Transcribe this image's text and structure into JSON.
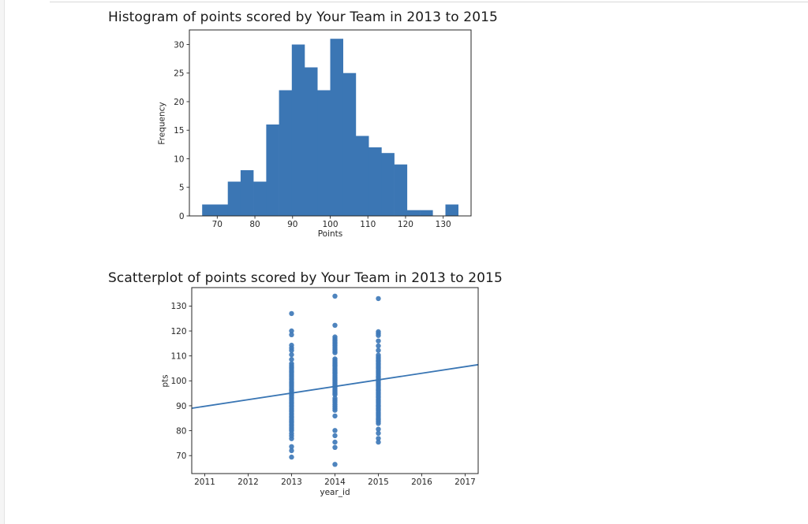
{
  "page": {
    "background": "#ffffff",
    "gutter_color": "#f5f5f5",
    "separator_color": "#d8d8d8",
    "accent_blue": "#3b76b4"
  },
  "chart_data": [
    {
      "type": "bar",
      "subtype": "histogram",
      "title": "Histogram of points scored by Your Team in 2013 to 2015",
      "xlabel": "Points",
      "ylabel": "Frequency",
      "bin_start": 66,
      "bin_width": 3.4,
      "bin_edges": [
        66.0,
        69.4,
        72.8,
        76.2,
        79.6,
        83.0,
        86.4,
        89.8,
        93.2,
        96.6,
        100.0,
        103.4,
        106.8,
        110.2,
        113.6,
        117.0,
        120.4,
        123.8,
        127.2,
        130.6,
        134.0
      ],
      "frequencies": [
        2,
        2,
        6,
        8,
        6,
        16,
        22,
        30,
        26,
        22,
        31,
        25,
        14,
        12,
        11,
        9,
        1,
        1,
        0,
        2
      ],
      "xlim": [
        62.6,
        137.4
      ],
      "ylim": [
        0,
        32.55
      ],
      "xticks": [
        70,
        80,
        90,
        100,
        110,
        120,
        130
      ],
      "yticks": [
        0,
        5,
        10,
        15,
        20,
        25,
        30
      ],
      "grid": false,
      "bar_color": "#3b76b4",
      "frame_color": "#262626"
    },
    {
      "type": "scatter",
      "title": "Scatterplot of points scored by Your Team in 2013 to 2015",
      "xlabel": "year_id",
      "ylabel": "pts",
      "xlim": [
        2010.7,
        2017.3
      ],
      "ylim": [
        62.8,
        137.4
      ],
      "xticks": [
        2011,
        2012,
        2013,
        2014,
        2015,
        2016,
        2017
      ],
      "yticks": [
        70,
        80,
        90,
        100,
        110,
        120,
        130
      ],
      "grid": false,
      "point_color": "#3f7ab8",
      "line_color": "#3a76b4",
      "regression_line": {
        "x1": 2010.7,
        "y1": 89.0,
        "x2": 2017.3,
        "y2": 106.5
      },
      "series": [
        {
          "name": "2013",
          "x": 2013,
          "pts": [
            127,
            120,
            118.5,
            114.3,
            113.2,
            112.2,
            110.5,
            108.6,
            106.9,
            106.3,
            105.6,
            105.0,
            104.3,
            103.7,
            103.1,
            102.4,
            101.8,
            101.1,
            100.5,
            99.8,
            99.2,
            98.6,
            97.9,
            97.3,
            96.6,
            96.0,
            95.4,
            94.7,
            94.1,
            93.4,
            92.8,
            92.1,
            91.5,
            90.9,
            90.2,
            89.6,
            88.9,
            88.3,
            87.7,
            87.0,
            86.4,
            85.7,
            85.1,
            84.4,
            83.8,
            83.2,
            82.5,
            81.9,
            81.2,
            80.6,
            80.0,
            78.9,
            77.9,
            76.8,
            73.6,
            72.0,
            69.4
          ]
        },
        {
          "name": "2014",
          "x": 2014,
          "pts": [
            134,
            122.3,
            117.6,
            116.9,
            116.2,
            115.5,
            114.8,
            114.1,
            113.4,
            112.7,
            112.0,
            111.3,
            108.8,
            108.2,
            107.6,
            107.0,
            106.4,
            105.8,
            105.2,
            104.6,
            104.0,
            103.4,
            102.8,
            102.2,
            101.6,
            101.0,
            100.4,
            99.8,
            99.2,
            98.6,
            98.0,
            97.4,
            96.8,
            96.2,
            95.6,
            95.0,
            94.4,
            93.0,
            92.2,
            91.4,
            90.6,
            89.8,
            89.0,
            88.2,
            85.9,
            80.1,
            78.0,
            75.4,
            73.3,
            66.5
          ]
        },
        {
          "name": "2015",
          "x": 2015,
          "pts": [
            133,
            119.7,
            119.0,
            118.2,
            116.0,
            114.0,
            112.2,
            110.3,
            109.6,
            109.0,
            108.3,
            107.7,
            107.0,
            106.4,
            105.7,
            105.1,
            104.4,
            103.8,
            103.1,
            102.5,
            101.8,
            101.2,
            100.5,
            99.9,
            99.2,
            98.6,
            97.9,
            97.3,
            96.6,
            96.0,
            95.3,
            94.7,
            94.0,
            93.4,
            92.7,
            92.1,
            91.4,
            90.8,
            90.1,
            89.5,
            88.8,
            88.2,
            87.5,
            86.9,
            86.2,
            85.6,
            84.9,
            84.3,
            83.6,
            82.9,
            80.6,
            79.0,
            76.9,
            75.4
          ]
        }
      ]
    }
  ]
}
